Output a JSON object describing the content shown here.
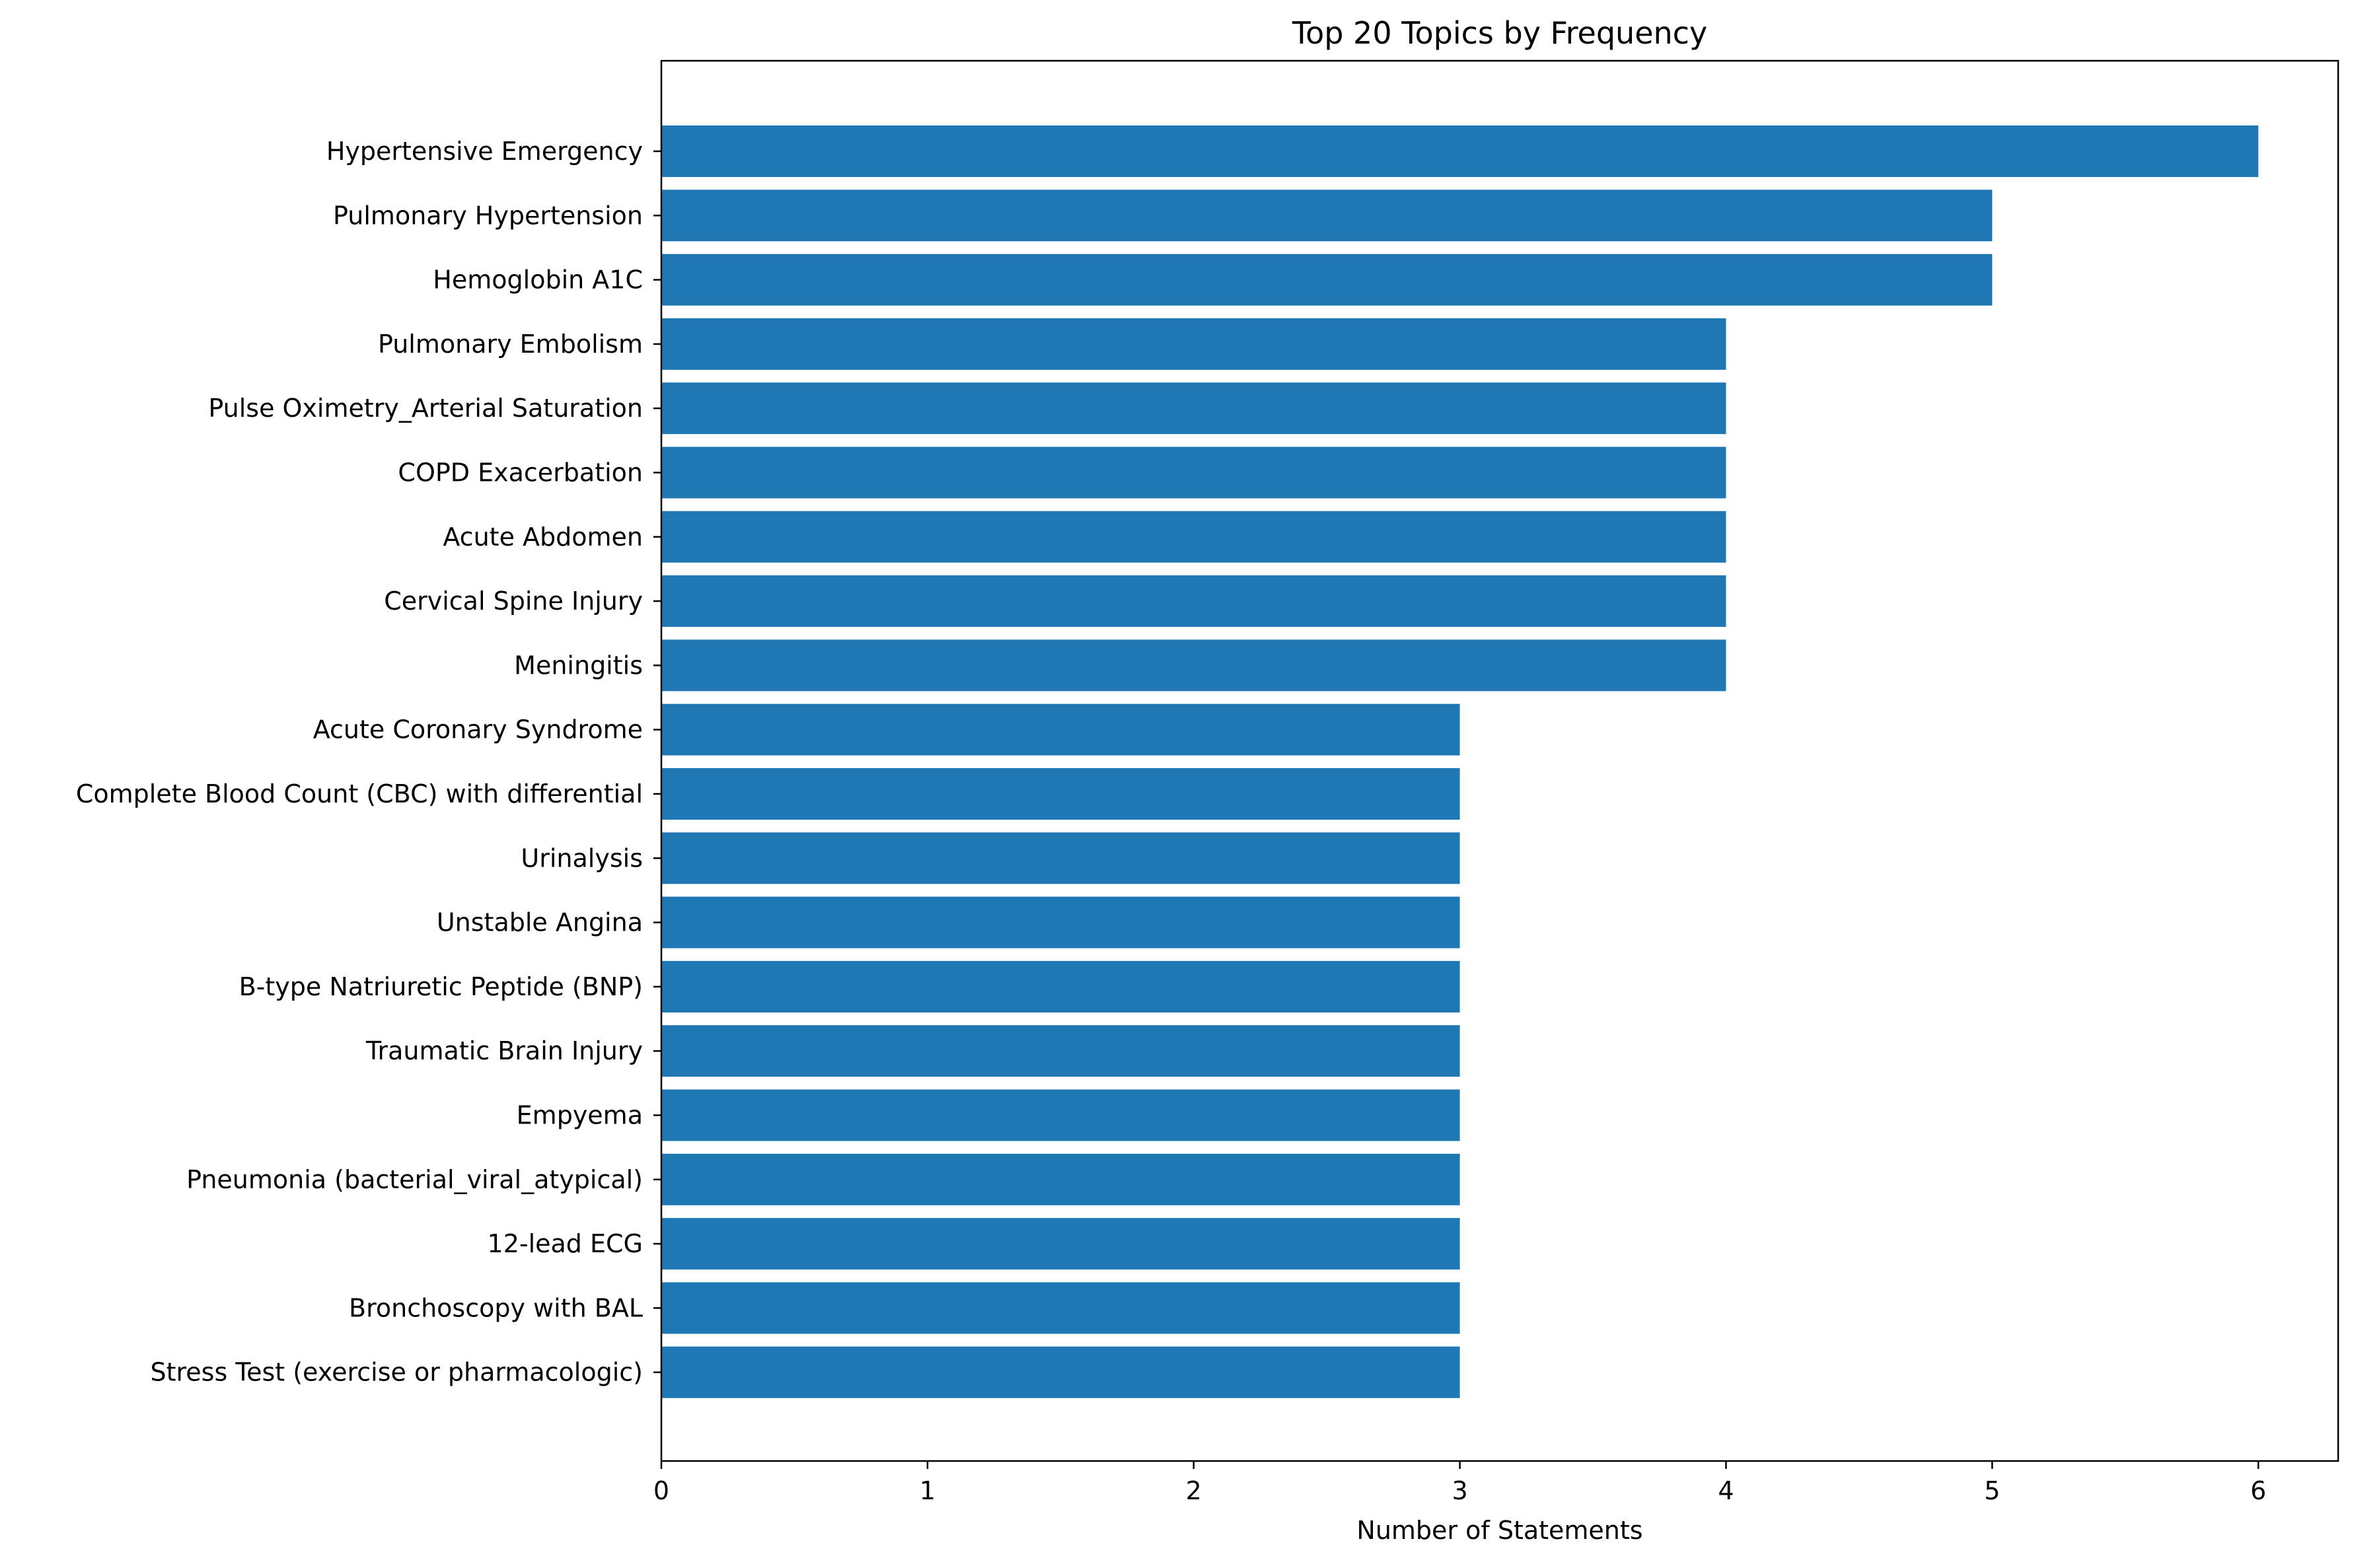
{
  "chart_data": {
    "type": "bar",
    "orientation": "horizontal",
    "title": "Top 20 Topics by Frequency",
    "xlabel": "Number of Statements",
    "ylabel": "",
    "xlim": [
      0,
      6.3
    ],
    "xticks": [
      0,
      1,
      2,
      3,
      4,
      5,
      6
    ],
    "grid": false,
    "bar_color": "#1f77b4",
    "categories": [
      "Hypertensive Emergency",
      "Pulmonary Hypertension",
      "Hemoglobin A1C",
      "Pulmonary Embolism",
      "Pulse Oximetry_Arterial Saturation",
      "COPD Exacerbation",
      "Acute Abdomen",
      "Cervical Spine Injury",
      "Meningitis",
      "Acute Coronary Syndrome",
      "Complete Blood Count (CBC) with differential",
      "Urinalysis",
      "Unstable Angina",
      "B-type Natriuretic Peptide (BNP)",
      "Traumatic Brain Injury",
      "Empyema",
      "Pneumonia (bacterial_viral_atypical)",
      "12-lead ECG",
      "Bronchoscopy with BAL",
      "Stress Test (exercise or pharmacologic)"
    ],
    "values": [
      6,
      5,
      5,
      4,
      4,
      4,
      4,
      4,
      4,
      3,
      3,
      3,
      3,
      3,
      3,
      3,
      3,
      3,
      3,
      3
    ]
  }
}
